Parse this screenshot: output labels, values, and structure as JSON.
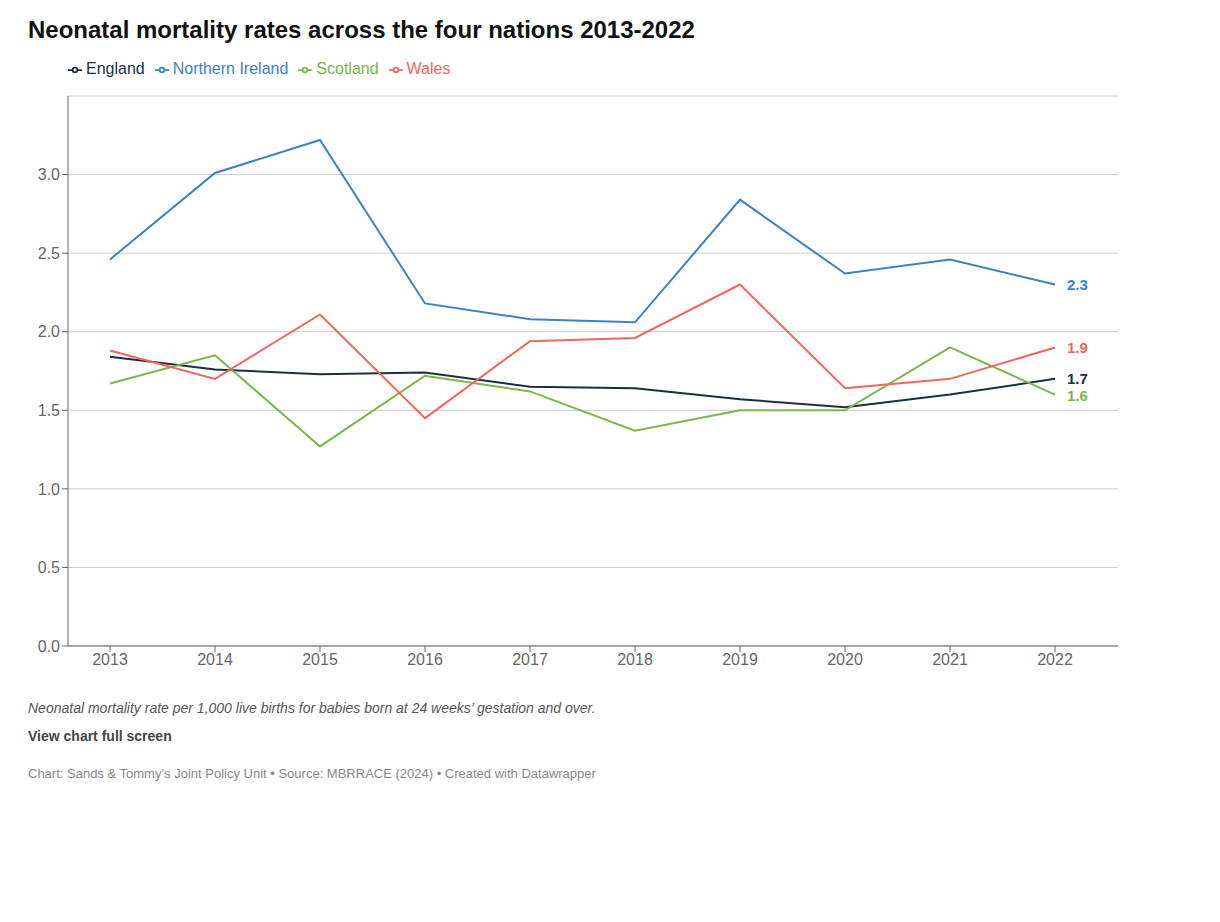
{
  "chart_data": {
    "type": "line",
    "title": "Neonatal mortality rates across the four nations 2013-2022",
    "x": [
      2013,
      2014,
      2015,
      2016,
      2017,
      2018,
      2019,
      2020,
      2021,
      2022
    ],
    "series": [
      {
        "name": "England",
        "color": "#1a2e44",
        "values": [
          1.84,
          1.76,
          1.73,
          1.74,
          1.65,
          1.64,
          1.57,
          1.52,
          1.6,
          1.7
        ]
      },
      {
        "name": "Northern Ireland",
        "color": "#3b82c4",
        "values": [
          2.46,
          3.01,
          3.22,
          2.18,
          2.08,
          2.06,
          2.84,
          2.37,
          2.46,
          2.3
        ]
      },
      {
        "name": "Scotland",
        "color": "#7ab648",
        "values": [
          1.67,
          1.85,
          1.27,
          1.72,
          1.62,
          1.37,
          1.5,
          1.5,
          1.9,
          1.6
        ]
      },
      {
        "name": "Wales",
        "color": "#f4655a",
        "values": [
          1.88,
          1.7,
          2.11,
          1.45,
          1.94,
          1.96,
          2.3,
          1.64,
          1.7,
          1.9
        ]
      }
    ],
    "xlim": [
      2012.6,
      2022.6
    ],
    "xticks": [
      2013,
      2014,
      2015,
      2016,
      2017,
      2018,
      2019,
      2020,
      2021,
      2022
    ],
    "ylim": [
      0.0,
      3.5
    ],
    "yticks": [
      {
        "value": 0.0,
        "label": "0.0"
      },
      0.5,
      {
        "value": 1.0,
        "label": "1.0"
      },
      1.5,
      {
        "value": 2.0,
        "label": "2.0"
      },
      2.5,
      {
        "value": 3.0,
        "label": "3.0"
      }
    ],
    "grid": true,
    "legend": "top",
    "annotations": [
      {
        "text": "2.3",
        "series": "Northern Ireland"
      },
      {
        "text": "1.9",
        "series": "Wales"
      },
      {
        "text": "1.7",
        "series": "England"
      },
      {
        "text": "1.6",
        "series": "Scotland"
      }
    ],
    "footnotes": [
      "Neonatal mortality rate per 1,000 live births for babies born at 24 weeks’ gestation and over.",
      "View chart full screen",
      "Chart: Sands & Tommy’s Joint Policy Unit • Source: MBRRACE (2024) • Created with Datawrapper"
    ]
  }
}
